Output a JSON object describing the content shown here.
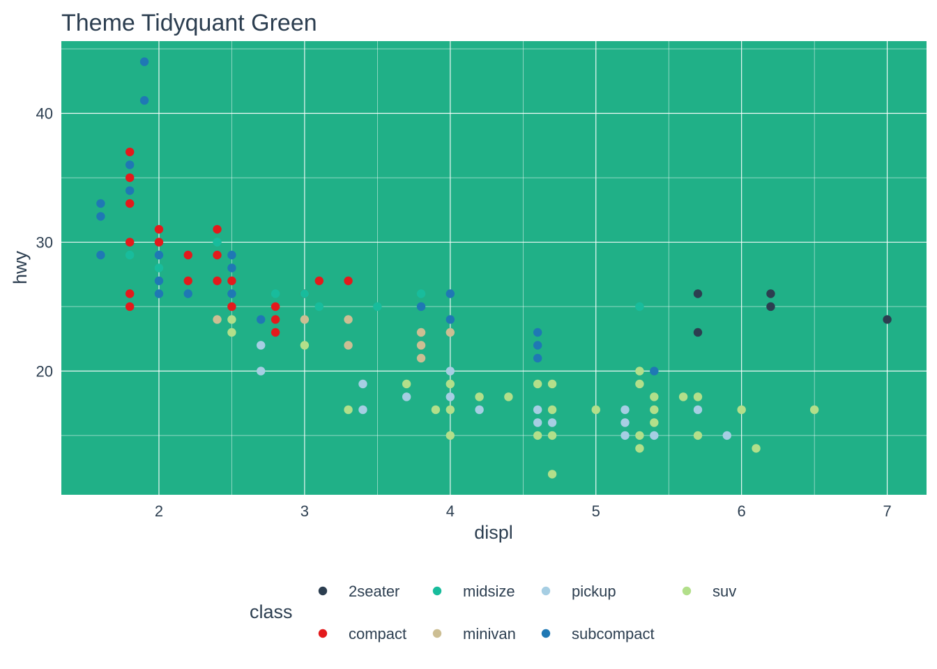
{
  "chart_data": {
    "type": "scatter",
    "title": "Theme Tidyquant Green",
    "xlabel": "displ",
    "ylabel": "hwy",
    "xlim": [
      1.33,
      7.27
    ],
    "ylim": [
      10.4,
      45.6
    ],
    "x_ticks": [
      2,
      3,
      4,
      5,
      6,
      7
    ],
    "y_ticks": [
      20,
      30,
      40
    ],
    "grid": true,
    "panel_color": "#20b087",
    "grid_color": "#ffffff",
    "legend": {
      "title": "class",
      "position": "bottom",
      "entries": [
        {
          "name": "2seater",
          "color": "#2c3e50"
        },
        {
          "name": "compact",
          "color": "#e31a1c"
        },
        {
          "name": "midsize",
          "color": "#18bc9c"
        },
        {
          "name": "minivan",
          "color": "#ccbe93"
        },
        {
          "name": "pickup",
          "color": "#a6cee3"
        },
        {
          "name": "subcompact",
          "color": "#1f78b4"
        },
        {
          "name": "suv",
          "color": "#b2df8a"
        }
      ]
    },
    "series": [
      {
        "name": "2seater",
        "color": "#2c3e50",
        "points": [
          [
            5.7,
            26
          ],
          [
            5.7,
            23
          ],
          [
            6.2,
            26
          ],
          [
            6.2,
            25
          ],
          [
            7.0,
            24
          ]
        ]
      },
      {
        "name": "compact",
        "color": "#e31a1c",
        "points": [
          [
            1.8,
            37
          ],
          [
            1.8,
            35
          ],
          [
            1.8,
            33
          ],
          [
            1.8,
            30
          ],
          [
            1.8,
            26
          ],
          [
            1.8,
            25
          ],
          [
            2.0,
            31
          ],
          [
            2.0,
            30
          ],
          [
            2.2,
            29
          ],
          [
            2.2,
            27
          ],
          [
            2.4,
            31
          ],
          [
            2.4,
            29
          ],
          [
            2.4,
            27
          ],
          [
            2.5,
            27
          ],
          [
            2.5,
            25
          ],
          [
            2.8,
            25
          ],
          [
            2.8,
            24
          ],
          [
            2.8,
            23
          ],
          [
            3.0,
            26
          ],
          [
            3.1,
            27
          ],
          [
            3.3,
            27
          ]
        ]
      },
      {
        "name": "midsize",
        "color": "#18bc9c",
        "points": [
          [
            1.8,
            29
          ],
          [
            2.0,
            29
          ],
          [
            2.0,
            28
          ],
          [
            2.8,
            26
          ],
          [
            3.0,
            26
          ],
          [
            3.1,
            25
          ],
          [
            3.5,
            25
          ],
          [
            3.8,
            26
          ],
          [
            5.3,
            25
          ],
          [
            2.4,
            30
          ]
        ]
      },
      {
        "name": "minivan",
        "color": "#ccbe93",
        "points": [
          [
            2.4,
            24
          ],
          [
            3.0,
            24
          ],
          [
            3.3,
            24
          ],
          [
            3.3,
            22
          ],
          [
            3.8,
            23
          ],
          [
            3.8,
            22
          ],
          [
            3.8,
            21
          ],
          [
            4.0,
            23
          ]
        ]
      },
      {
        "name": "pickup",
        "color": "#a6cee3",
        "points": [
          [
            2.7,
            22
          ],
          [
            2.7,
            20
          ],
          [
            3.4,
            19
          ],
          [
            3.4,
            17
          ],
          [
            3.7,
            18
          ],
          [
            4.0,
            20
          ],
          [
            4.0,
            18
          ],
          [
            4.2,
            17
          ],
          [
            4.6,
            17
          ],
          [
            4.6,
            16
          ],
          [
            4.7,
            16
          ],
          [
            5.2,
            17
          ],
          [
            5.2,
            16
          ],
          [
            5.2,
            15
          ],
          [
            5.4,
            15
          ],
          [
            5.7,
            17
          ],
          [
            5.9,
            15
          ]
        ]
      },
      {
        "name": "subcompact",
        "color": "#1f78b4",
        "points": [
          [
            1.6,
            33
          ],
          [
            1.6,
            32
          ],
          [
            1.6,
            29
          ],
          [
            1.8,
            36
          ],
          [
            1.8,
            34
          ],
          [
            1.9,
            44
          ],
          [
            1.9,
            41
          ],
          [
            2.0,
            29
          ],
          [
            2.0,
            27
          ],
          [
            2.0,
            26
          ],
          [
            2.2,
            26
          ],
          [
            2.5,
            29
          ],
          [
            2.5,
            28
          ],
          [
            2.5,
            26
          ],
          [
            2.7,
            24
          ],
          [
            3.8,
            25
          ],
          [
            4.0,
            26
          ],
          [
            4.0,
            24
          ],
          [
            4.6,
            23
          ],
          [
            4.6,
            22
          ],
          [
            4.6,
            21
          ],
          [
            5.4,
            20
          ]
        ]
      },
      {
        "name": "suv",
        "color": "#b2df8a",
        "points": [
          [
            2.5,
            24
          ],
          [
            2.5,
            23
          ],
          [
            3.0,
            22
          ],
          [
            3.3,
            17
          ],
          [
            3.7,
            19
          ],
          [
            3.9,
            17
          ],
          [
            4.0,
            19
          ],
          [
            4.0,
            17
          ],
          [
            4.0,
            15
          ],
          [
            4.2,
            18
          ],
          [
            4.4,
            18
          ],
          [
            4.6,
            19
          ],
          [
            4.6,
            15
          ],
          [
            4.7,
            19
          ],
          [
            4.7,
            17
          ],
          [
            4.7,
            15
          ],
          [
            4.7,
            12
          ],
          [
            5.0,
            17
          ],
          [
            5.3,
            20
          ],
          [
            5.3,
            19
          ],
          [
            5.3,
            15
          ],
          [
            5.3,
            14
          ],
          [
            5.4,
            18
          ],
          [
            5.4,
            17
          ],
          [
            5.4,
            16
          ],
          [
            5.6,
            18
          ],
          [
            5.7,
            18
          ],
          [
            5.7,
            15
          ],
          [
            6.0,
            17
          ],
          [
            6.1,
            14
          ],
          [
            6.5,
            17
          ]
        ]
      }
    ]
  }
}
